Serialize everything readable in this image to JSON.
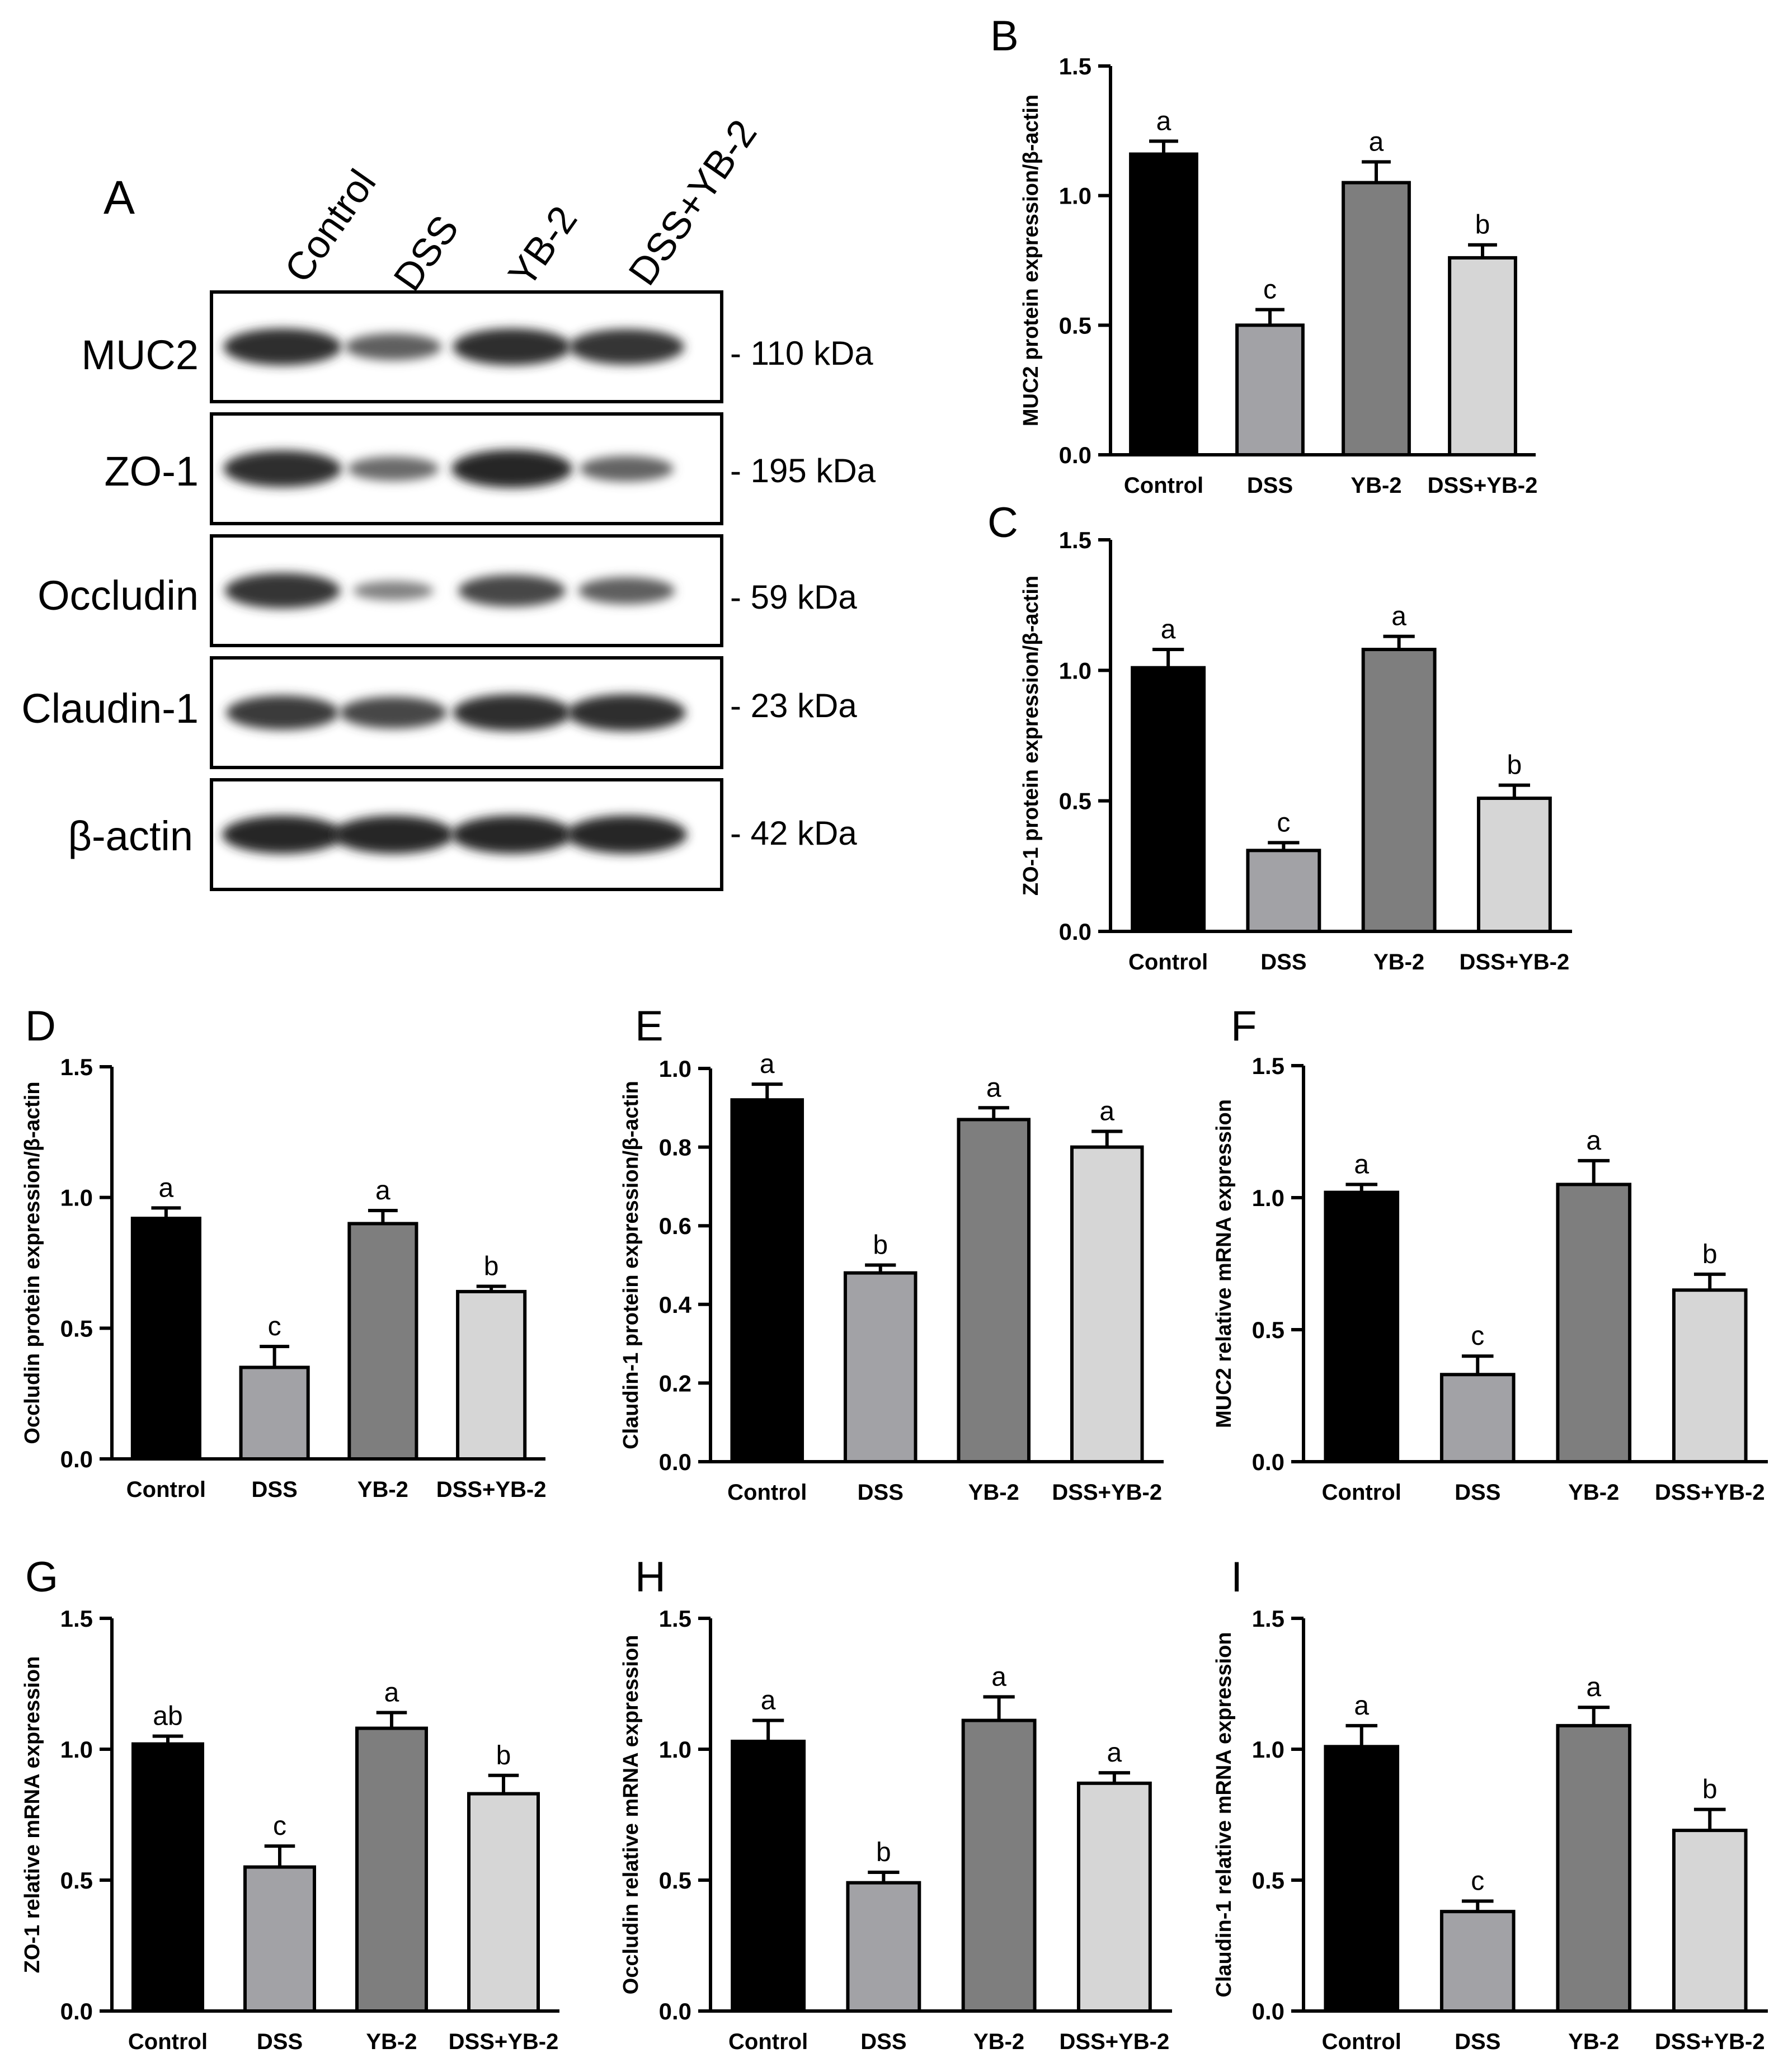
{
  "figure": {
    "panel_letters": [
      "A",
      "B",
      "C",
      "D",
      "E",
      "F",
      "G",
      "H",
      "I"
    ],
    "colors": {
      "Control": "#000000",
      "DSS": "#a2a2a6",
      "YB-2": "#7e7e7e",
      "DSS+YB-2": "#d6d6d6",
      "axis": "#000000"
    }
  },
  "blot": {
    "letter": "A",
    "lanes": [
      "Control",
      "DSS",
      "YB-2",
      "DSS+YB-2"
    ],
    "rows": [
      {
        "protein": "MUC2",
        "size": "- 110 kDa",
        "intensity": [
          0.95,
          0.55,
          0.95,
          0.9
        ]
      },
      {
        "protein": "ZO-1",
        "size": "- 195 kDa",
        "intensity": [
          0.95,
          0.45,
          1.0,
          0.5
        ]
      },
      {
        "protein": "Occludin",
        "size": "- 59 kDa",
        "intensity": [
          0.9,
          0.25,
          0.75,
          0.55
        ]
      },
      {
        "protein": "Claudin-1",
        "size": "- 23 kDa",
        "intensity": [
          0.85,
          0.75,
          0.95,
          0.95
        ]
      },
      {
        "protein": "β-actin",
        "size": "- 42 kDa",
        "intensity": [
          1.0,
          1.0,
          1.0,
          1.0
        ]
      }
    ]
  },
  "chart_data": [
    {
      "panel": "B",
      "type": "bar",
      "categories": [
        "Control",
        "DSS",
        "YB-2",
        "DSS+YB-2"
      ],
      "values": [
        1.16,
        0.5,
        1.05,
        0.76
      ],
      "errors": [
        0.05,
        0.06,
        0.08,
        0.05
      ],
      "letters": [
        "a",
        "c",
        "a",
        "b"
      ],
      "ylabel": "MUC2 protein expression/β-actin",
      "ylim": [
        0,
        1.5
      ],
      "yticks": [
        "0.0",
        "0.5",
        "1.0",
        "1.5"
      ]
    },
    {
      "panel": "C",
      "type": "bar",
      "categories": [
        "Control",
        "DSS",
        "YB-2",
        "DSS+YB-2"
      ],
      "values": [
        1.01,
        0.31,
        1.08,
        0.51
      ],
      "errors": [
        0.07,
        0.03,
        0.05,
        0.05
      ],
      "letters": [
        "a",
        "c",
        "a",
        "b"
      ],
      "ylabel": "ZO-1 protein expression/β-actin",
      "ylim": [
        0,
        1.5
      ],
      "yticks": [
        "0.0",
        "0.5",
        "1.0",
        "1.5"
      ]
    },
    {
      "panel": "D",
      "type": "bar",
      "categories": [
        "Control",
        "DSS",
        "YB-2",
        "DSS+YB-2"
      ],
      "values": [
        0.92,
        0.35,
        0.9,
        0.64
      ],
      "errors": [
        0.04,
        0.08,
        0.05,
        0.02
      ],
      "letters": [
        "a",
        "c",
        "a",
        "b"
      ],
      "ylabel": "Occludin protein expression/β-actin",
      "ylim": [
        0,
        1.5
      ],
      "yticks": [
        "0.0",
        "0.5",
        "1.0",
        "1.5"
      ]
    },
    {
      "panel": "E",
      "type": "bar",
      "categories": [
        "Control",
        "DSS",
        "YB-2",
        "DSS+YB-2"
      ],
      "values": [
        0.92,
        0.48,
        0.87,
        0.8
      ],
      "errors": [
        0.04,
        0.02,
        0.03,
        0.04
      ],
      "letters": [
        "a",
        "b",
        "a",
        "a"
      ],
      "ylabel": "Claudin-1 protein expression/β-actin",
      "ylim": [
        0,
        1.0
      ],
      "yticks": [
        "0.0",
        "0.2",
        "0.4",
        "0.6",
        "0.8",
        "1.0"
      ]
    },
    {
      "panel": "F",
      "type": "bar",
      "categories": [
        "Control",
        "DSS",
        "YB-2",
        "DSS+YB-2"
      ],
      "values": [
        1.02,
        0.33,
        1.05,
        0.65
      ],
      "errors": [
        0.03,
        0.07,
        0.09,
        0.06
      ],
      "letters": [
        "a",
        "c",
        "a",
        "b"
      ],
      "ylabel": "MUC2 relative mRNA expression",
      "ylim": [
        0,
        1.5
      ],
      "yticks": [
        "0.0",
        "0.5",
        "1.0",
        "1.5"
      ]
    },
    {
      "panel": "G",
      "type": "bar",
      "categories": [
        "Control",
        "DSS",
        "YB-2",
        "DSS+YB-2"
      ],
      "values": [
        1.02,
        0.55,
        1.08,
        0.83
      ],
      "errors": [
        0.03,
        0.08,
        0.06,
        0.07
      ],
      "letters": [
        "ab",
        "c",
        "a",
        "b"
      ],
      "ylabel": "ZO-1 relative mRNA expression",
      "ylim": [
        0,
        1.5
      ],
      "yticks": [
        "0.0",
        "0.5",
        "1.0",
        "1.5"
      ]
    },
    {
      "panel": "H",
      "type": "bar",
      "categories": [
        "Control",
        "DSS",
        "YB-2",
        "DSS+YB-2"
      ],
      "values": [
        1.03,
        0.49,
        1.11,
        0.87
      ],
      "errors": [
        0.08,
        0.04,
        0.09,
        0.04
      ],
      "letters": [
        "a",
        "b",
        "a",
        "a"
      ],
      "ylabel": "Occludin relative mRNA expression",
      "ylim": [
        0,
        1.5
      ],
      "yticks": [
        "0.0",
        "0.5",
        "1.0",
        "1.5"
      ]
    },
    {
      "panel": "I",
      "type": "bar",
      "categories": [
        "Control",
        "DSS",
        "YB-2",
        "DSS+YB-2"
      ],
      "values": [
        1.01,
        0.38,
        1.09,
        0.69
      ],
      "errors": [
        0.08,
        0.04,
        0.07,
        0.08
      ],
      "letters": [
        "a",
        "c",
        "a",
        "b"
      ],
      "ylabel": "Claudin-1 relative mRNA expression",
      "ylim": [
        0,
        1.5
      ],
      "yticks": [
        "0.0",
        "0.5",
        "1.0",
        "1.5"
      ]
    }
  ]
}
